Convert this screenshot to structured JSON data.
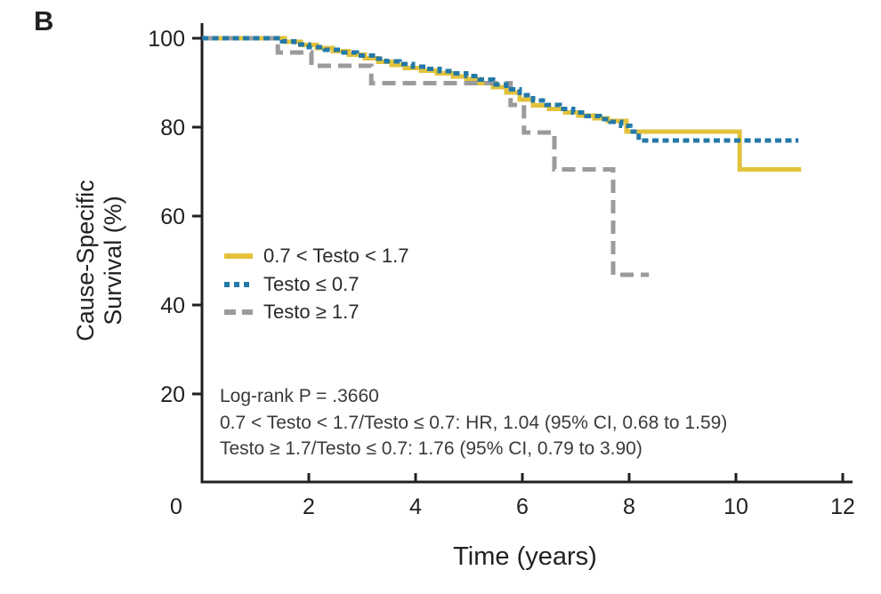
{
  "panel_label": "B",
  "axes": {
    "y_title_line1": "Cause-Specific",
    "y_title_line2": "Survival (%)",
    "x_title": "Time (years)"
  },
  "stats": {
    "line1": "Log-rank P = .3660",
    "line2": "0.7 < Testo < 1.7/Testo ≤ 0.7: HR, 1.04 (95% CI, 0.68 to 1.59)",
    "line3": "Testo ≥ 1.7/Testo ≤ 0.7: 1.76 (95% CI, 0.79 to 3.90)"
  },
  "colors": {
    "axis": "#231f20",
    "text": "#231f20",
    "yellow_series": "#E2C23B",
    "blue_series": "#2379A7",
    "gray_series": "#9B9B9B",
    "background": "#FFFFFF"
  },
  "chart_data": {
    "type": "line",
    "subtype": "kaplan-meier-step",
    "title": "",
    "xlabel": "Time (years)",
    "ylabel": "Cause-Specific Survival (%)",
    "xlim": [
      0,
      12.2
    ],
    "ylim": [
      0,
      100
    ],
    "xticks": [
      0,
      2,
      4,
      6,
      8,
      10,
      12
    ],
    "yticks": [
      100,
      80,
      60,
      40,
      20
    ],
    "grid": false,
    "legend_position": "inside-upper-left",
    "series": [
      {
        "name": "0.7 < Testo < 1.7",
        "color": "#E2C23B",
        "style": "solid",
        "end_t": 11.22,
        "points": [
          [
            0,
            100
          ],
          [
            1.55,
            99.2
          ],
          [
            1.85,
            98.5
          ],
          [
            2.15,
            97.8
          ],
          [
            2.45,
            97.1
          ],
          [
            2.75,
            96.3
          ],
          [
            3.05,
            95.5
          ],
          [
            3.3,
            94.7
          ],
          [
            3.55,
            94.0
          ],
          [
            3.8,
            93.3
          ],
          [
            4.1,
            92.7
          ],
          [
            4.4,
            92.1
          ],
          [
            4.7,
            91.4
          ],
          [
            4.95,
            90.8
          ],
          [
            5.2,
            89.9
          ],
          [
            5.45,
            89.0
          ],
          [
            5.7,
            87.8
          ],
          [
            5.95,
            86.2
          ],
          [
            6.2,
            84.9
          ],
          [
            6.5,
            84.1
          ],
          [
            6.8,
            83.3
          ],
          [
            7.05,
            82.6
          ],
          [
            7.35,
            82.0
          ],
          [
            7.6,
            81.4
          ],
          [
            7.95,
            79.0
          ],
          [
            10.07,
            70.5
          ]
        ]
      },
      {
        "name": "Testo ≤ 0.7",
        "color": "#2379A7",
        "style": "dotted",
        "end_t": 11.17,
        "points": [
          [
            0,
            100
          ],
          [
            1.5,
            99.3
          ],
          [
            1.73,
            98.6
          ],
          [
            2.0,
            98.0
          ],
          [
            2.3,
            97.4
          ],
          [
            2.6,
            96.8
          ],
          [
            2.9,
            96.1
          ],
          [
            3.2,
            95.4
          ],
          [
            3.45,
            94.8
          ],
          [
            3.7,
            94.2
          ],
          [
            3.95,
            93.6
          ],
          [
            4.2,
            93.1
          ],
          [
            4.45,
            92.6
          ],
          [
            4.7,
            92.1
          ],
          [
            4.95,
            91.5
          ],
          [
            5.2,
            90.7
          ],
          [
            5.45,
            89.6
          ],
          [
            5.7,
            88.5
          ],
          [
            5.95,
            87.2
          ],
          [
            6.2,
            86.0
          ],
          [
            6.45,
            85.0
          ],
          [
            6.7,
            84.1
          ],
          [
            6.95,
            83.3
          ],
          [
            7.2,
            82.5
          ],
          [
            7.45,
            81.8
          ],
          [
            7.65,
            81.2
          ],
          [
            7.85,
            80.3
          ],
          [
            8.02,
            79.0
          ],
          [
            8.18,
            77.0
          ]
        ]
      },
      {
        "name": "Testo ≥ 1.7",
        "color": "#9B9B9B",
        "style": "dashed",
        "end_t": 8.37,
        "points": [
          [
            0,
            100
          ],
          [
            1.42,
            96.8
          ],
          [
            2.05,
            93.8
          ],
          [
            3.17,
            89.9
          ],
          [
            5.78,
            85.0
          ],
          [
            6.03,
            78.8
          ],
          [
            6.6,
            70.5
          ],
          [
            7.7,
            46.8
          ]
        ]
      }
    ]
  }
}
